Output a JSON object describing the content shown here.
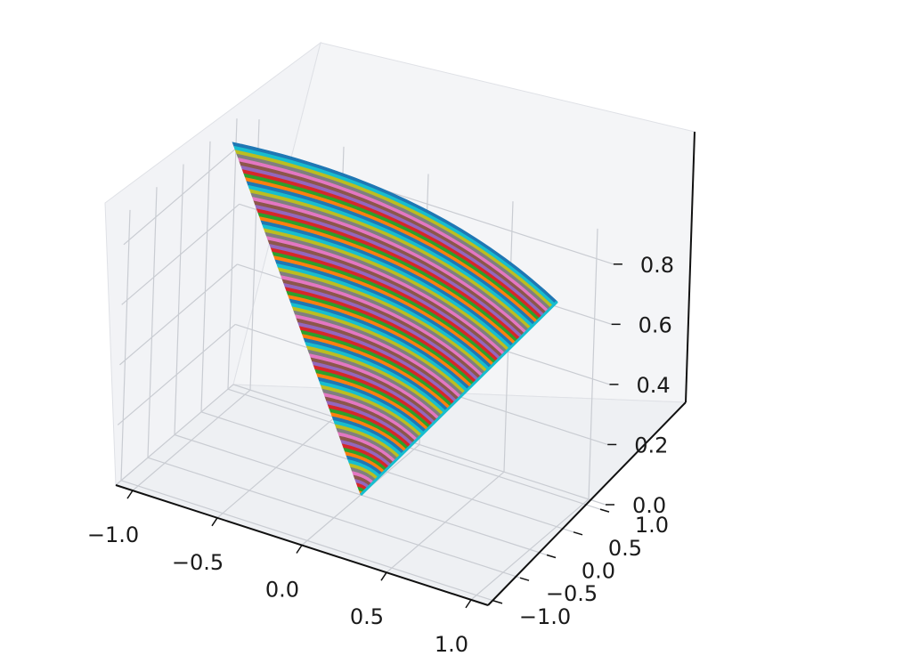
{
  "chart_data": {
    "type": "surface3d",
    "title": "",
    "xlabel": "",
    "ylabel": "",
    "zlabel": "",
    "xlim": [
      -1.1,
      1.1
    ],
    "ylim": [
      -1.1,
      1.1
    ],
    "zlim": [
      0,
      0.9
    ],
    "x_ticks": [
      "−1.0",
      "−0.5",
      "0.0",
      "0.5",
      "1.0"
    ],
    "y_ticks": [
      "−1.0",
      "−0.5",
      "0.0",
      "0.5",
      "1.0"
    ],
    "z_ticks": [
      "0.0",
      "0.2",
      "0.4",
      "0.6",
      "0.8"
    ],
    "grid": true,
    "pane_color": "#f2f3f6",
    "grid_color": "#c9ccd2",
    "surface": {
      "description_shape": "twisted conical sheet, apex at base",
      "apex": [
        0.0,
        0.0,
        0.0
      ],
      "top_corners": [
        [
          -1.0,
          0.6,
          0.9
        ],
        [
          0.9,
          0.7,
          0.7
        ]
      ],
      "stripe_colors": [
        "#1f77b4",
        "#ff7f0e",
        "#2ca02c",
        "#d62728",
        "#9467bd",
        "#8c564b",
        "#e377c2",
        "#7f7f7f",
        "#bcbd22",
        "#17becf"
      ]
    }
  }
}
